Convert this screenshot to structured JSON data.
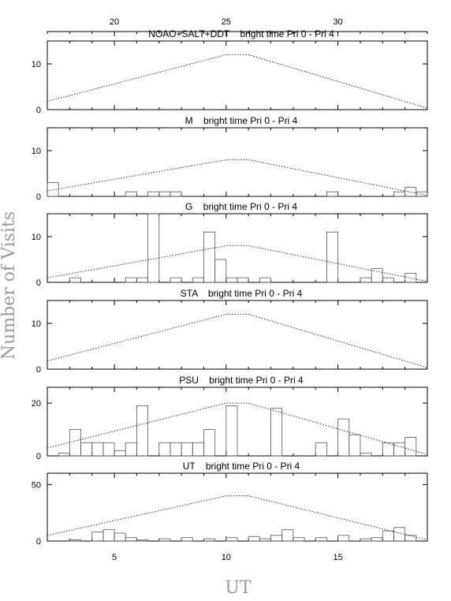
{
  "axes": {
    "x_bottom_label": "UT",
    "y_label": "Number of Visits",
    "x_bottom_ticks": [
      5,
      10,
      15
    ],
    "x_top_ticks": [
      20,
      25,
      30
    ],
    "x_range": [
      2,
      19
    ],
    "x_top_offset": 15
  },
  "chart_data": [
    {
      "type": "bar",
      "title": "NOAO+SALT+DDT    bright time Pri 0 - Pri 4",
      "ylim": [
        0,
        15
      ],
      "yticks": [
        0,
        10
      ],
      "bin_width": 0.5,
      "bins": [],
      "curve": [
        [
          2,
          1.8
        ],
        [
          10,
          12
        ],
        [
          11,
          12
        ],
        [
          19,
          0.3
        ]
      ]
    },
    {
      "type": "bar",
      "title": "M    bright time Pri 0 - Pri 4",
      "ylim": [
        0,
        15
      ],
      "yticks": [
        0,
        10
      ],
      "bin_width": 0.5,
      "bins": [
        [
          2,
          3
        ],
        [
          5.5,
          1
        ],
        [
          6.5,
          1
        ],
        [
          7,
          1
        ],
        [
          7.5,
          1
        ],
        [
          14.5,
          1
        ],
        [
          17.5,
          1
        ],
        [
          18,
          2
        ],
        [
          18.5,
          1
        ],
        [
          19,
          1
        ]
      ],
      "curve": [
        [
          2,
          1.2
        ],
        [
          10,
          8
        ],
        [
          11,
          8
        ],
        [
          19,
          0.2
        ]
      ]
    },
    {
      "type": "bar",
      "title": "G    bright time Pri 0 - Pri 4",
      "ylim": [
        0,
        15
      ],
      "yticks": [
        0,
        10
      ],
      "bin_width": 0.5,
      "bins": [
        [
          3,
          1
        ],
        [
          5.5,
          1
        ],
        [
          6,
          1
        ],
        [
          6.5,
          15
        ],
        [
          7.5,
          1
        ],
        [
          8.5,
          1
        ],
        [
          9,
          11
        ],
        [
          9.5,
          5
        ],
        [
          10,
          1
        ],
        [
          10.5,
          1
        ],
        [
          11.5,
          1
        ],
        [
          14.5,
          11
        ],
        [
          16,
          1
        ],
        [
          16.5,
          3
        ],
        [
          17,
          1
        ],
        [
          18,
          2
        ]
      ],
      "curve": [
        [
          2,
          1.0
        ],
        [
          10,
          8
        ],
        [
          11,
          8
        ],
        [
          19,
          0.2
        ]
      ]
    },
    {
      "type": "bar",
      "title": "STA    bright time Pri 0 - Pri 4",
      "ylim": [
        0,
        15
      ],
      "yticks": [
        0,
        10
      ],
      "bin_width": 0.5,
      "bins": [],
      "curve": [
        [
          2,
          1.8
        ],
        [
          10,
          12
        ],
        [
          11,
          12
        ],
        [
          19,
          0.3
        ]
      ]
    },
    {
      "type": "bar",
      "title": "PSU    bright time Pri 0 - Pri 4",
      "ylim": [
        0,
        26
      ],
      "yticks": [
        0,
        20
      ],
      "bin_width": 0.5,
      "bins": [
        [
          2.5,
          1
        ],
        [
          3,
          10
        ],
        [
          3.5,
          5
        ],
        [
          4,
          5
        ],
        [
          4.5,
          5
        ],
        [
          5,
          2
        ],
        [
          5.5,
          5
        ],
        [
          6,
          19
        ],
        [
          7,
          5
        ],
        [
          7.5,
          5
        ],
        [
          8,
          5
        ],
        [
          8.5,
          5
        ],
        [
          9,
          10
        ],
        [
          10,
          19
        ],
        [
          12,
          18
        ],
        [
          14,
          5
        ],
        [
          15,
          14
        ],
        [
          15.5,
          8
        ],
        [
          16,
          1
        ],
        [
          17,
          5
        ],
        [
          17.5,
          5
        ],
        [
          18,
          7
        ]
      ],
      "curve": [
        [
          2,
          3
        ],
        [
          10,
          20
        ],
        [
          11,
          20
        ],
        [
          19,
          0.5
        ]
      ]
    },
    {
      "type": "bar",
      "title": "UT    bright time Pri 0 - Pri 4",
      "ylim": [
        0,
        60
      ],
      "yticks": [
        0,
        50
      ],
      "bin_width": 0.5,
      "bins": [
        [
          3,
          1
        ],
        [
          4,
          8
        ],
        [
          4.5,
          10
        ],
        [
          5,
          7
        ],
        [
          5.5,
          3
        ],
        [
          6,
          1
        ],
        [
          7,
          2
        ],
        [
          8,
          3
        ],
        [
          9,
          2
        ],
        [
          10,
          3
        ],
        [
          11,
          4
        ],
        [
          11.5,
          2
        ],
        [
          12,
          5
        ],
        [
          12.5,
          10
        ],
        [
          13,
          3
        ],
        [
          14,
          3
        ],
        [
          15,
          5
        ],
        [
          16,
          2
        ],
        [
          16.5,
          3
        ],
        [
          17,
          9
        ],
        [
          17.5,
          12
        ],
        [
          18,
          5
        ]
      ],
      "curve": [
        [
          2,
          5
        ],
        [
          10,
          40
        ],
        [
          11,
          40
        ],
        [
          19,
          1
        ]
      ]
    }
  ]
}
